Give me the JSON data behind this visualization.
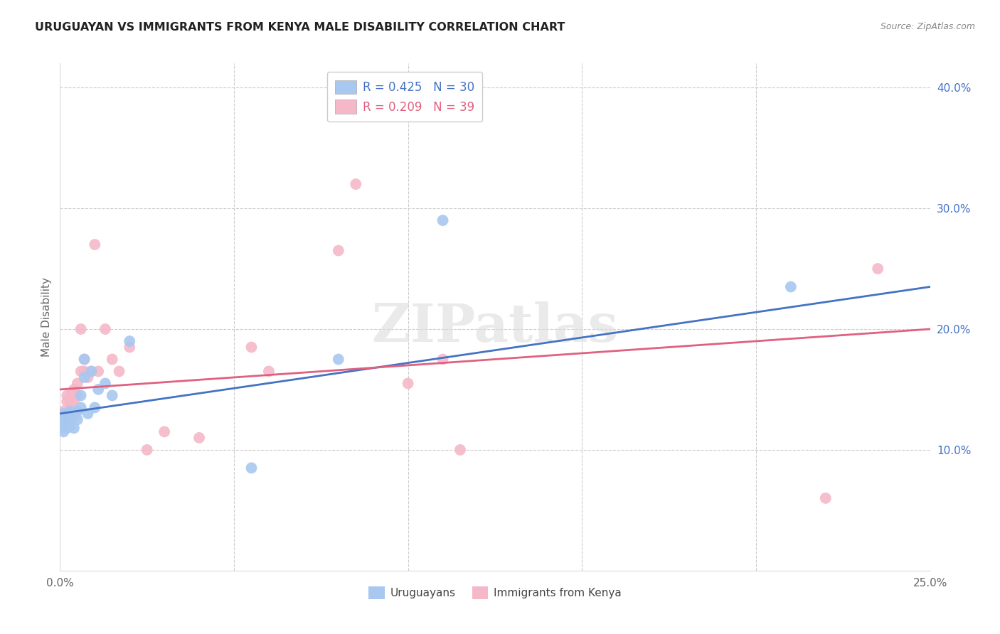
{
  "title": "URUGUAYAN VS IMMIGRANTS FROM KENYA MALE DISABILITY CORRELATION CHART",
  "source": "Source: ZipAtlas.com",
  "ylabel": "Male Disability",
  "xlim": [
    0.0,
    0.25
  ],
  "ylim": [
    0.0,
    0.42
  ],
  "xticks": [
    0.0,
    0.05,
    0.1,
    0.15,
    0.2,
    0.25
  ],
  "yticks": [
    0.0,
    0.1,
    0.2,
    0.3,
    0.4
  ],
  "xtick_labels": [
    "0.0%",
    "",
    "",
    "",
    "",
    "25.0%"
  ],
  "ytick_labels": [
    "",
    "10.0%",
    "20.0%",
    "30.0%",
    "40.0%"
  ],
  "blue_color": "#A8C8F0",
  "pink_color": "#F5B8C8",
  "blue_line_color": "#4472C4",
  "pink_line_color": "#E06080",
  "legend_blue_R": "R = 0.425",
  "legend_blue_N": "N = 30",
  "legend_pink_R": "R = 0.209",
  "legend_pink_N": "N = 39",
  "watermark": "ZIPatlas",
  "uruguayans_x": [
    0.001,
    0.001,
    0.001,
    0.001,
    0.002,
    0.002,
    0.002,
    0.003,
    0.003,
    0.003,
    0.004,
    0.004,
    0.004,
    0.005,
    0.005,
    0.006,
    0.006,
    0.007,
    0.007,
    0.008,
    0.009,
    0.01,
    0.011,
    0.013,
    0.015,
    0.02,
    0.055,
    0.08,
    0.11,
    0.21
  ],
  "uruguayans_y": [
    0.13,
    0.125,
    0.12,
    0.115,
    0.128,
    0.122,
    0.118,
    0.132,
    0.125,
    0.12,
    0.13,
    0.128,
    0.118,
    0.132,
    0.125,
    0.145,
    0.135,
    0.175,
    0.16,
    0.13,
    0.165,
    0.135,
    0.15,
    0.155,
    0.145,
    0.19,
    0.085,
    0.175,
    0.29,
    0.235
  ],
  "kenya_x": [
    0.001,
    0.001,
    0.001,
    0.001,
    0.002,
    0.002,
    0.002,
    0.003,
    0.003,
    0.003,
    0.004,
    0.004,
    0.004,
    0.005,
    0.005,
    0.006,
    0.006,
    0.007,
    0.007,
    0.008,
    0.009,
    0.01,
    0.011,
    0.013,
    0.015,
    0.017,
    0.02,
    0.025,
    0.03,
    0.04,
    0.055,
    0.06,
    0.08,
    0.085,
    0.1,
    0.11,
    0.115,
    0.22,
    0.235
  ],
  "kenya_y": [
    0.128,
    0.132,
    0.118,
    0.122,
    0.14,
    0.145,
    0.13,
    0.145,
    0.135,
    0.14,
    0.15,
    0.145,
    0.14,
    0.155,
    0.145,
    0.2,
    0.165,
    0.175,
    0.165,
    0.16,
    0.165,
    0.27,
    0.165,
    0.2,
    0.175,
    0.165,
    0.185,
    0.1,
    0.115,
    0.11,
    0.185,
    0.165,
    0.265,
    0.32,
    0.155,
    0.175,
    0.1,
    0.06,
    0.25
  ],
  "blue_line_x0": 0.0,
  "blue_line_y0": 0.13,
  "blue_line_x1": 0.25,
  "blue_line_y1": 0.235,
  "pink_line_x0": 0.0,
  "pink_line_y0": 0.15,
  "pink_line_x1": 0.25,
  "pink_line_y1": 0.2
}
